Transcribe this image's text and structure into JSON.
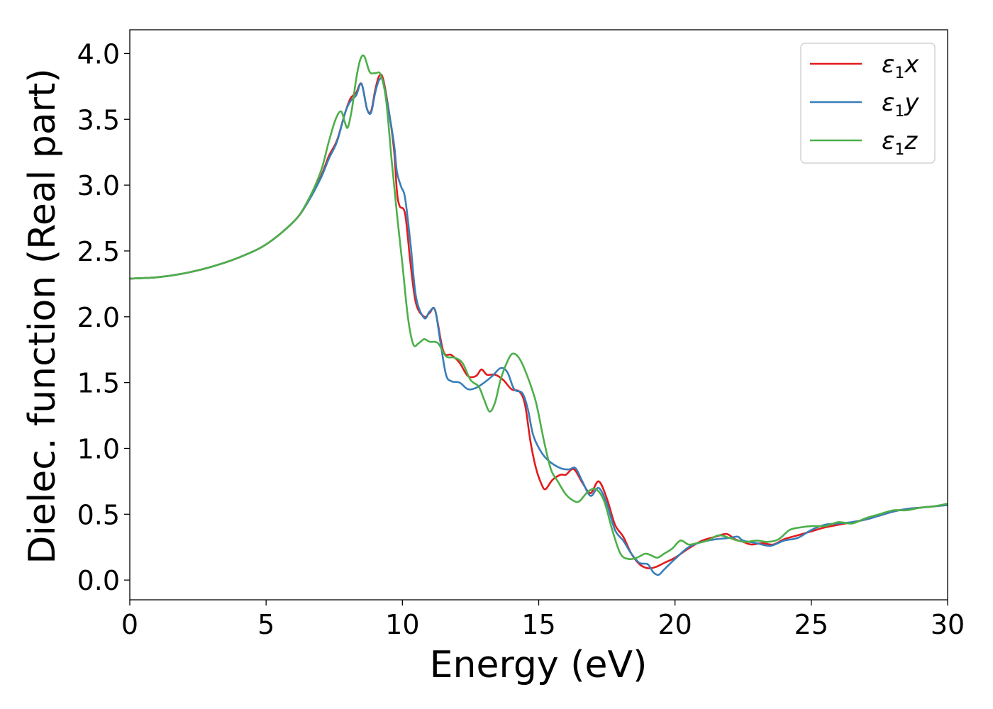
{
  "chart_data": {
    "type": "line",
    "xlabel": "Energy (eV)",
    "ylabel": "Dielec. function (Real part)",
    "xlim": [
      0,
      30
    ],
    "ylim": [
      -0.15,
      4.18
    ],
    "xticks": [
      0,
      5,
      10,
      15,
      20,
      25,
      30
    ],
    "xtick_labels": [
      "0",
      "5",
      "10",
      "15",
      "20",
      "25",
      "30"
    ],
    "yticks": [
      0.0,
      0.5,
      1.0,
      1.5,
      2.0,
      2.5,
      3.0,
      3.5,
      4.0
    ],
    "ytick_labels": [
      "0.0",
      "0.5",
      "1.0",
      "1.5",
      "2.0",
      "2.5",
      "3.0",
      "3.5",
      "4.0"
    ],
    "grid": false,
    "legend_position": "top-right",
    "series": [
      {
        "name": "ε1x",
        "symbol": "ε",
        "subscript": "1",
        "axis": "x",
        "color": "#e41a1c",
        "points": [
          [
            0,
            2.29
          ],
          [
            1,
            2.3
          ],
          [
            2,
            2.33
          ],
          [
            3,
            2.38
          ],
          [
            4,
            2.45
          ],
          [
            5,
            2.55
          ],
          [
            6,
            2.72
          ],
          [
            6.5,
            2.86
          ],
          [
            7,
            3.06
          ],
          [
            7.3,
            3.22
          ],
          [
            7.6,
            3.34
          ],
          [
            7.9,
            3.55
          ],
          [
            8.1,
            3.66
          ],
          [
            8.3,
            3.7
          ],
          [
            8.5,
            3.77
          ],
          [
            8.7,
            3.58
          ],
          [
            8.85,
            3.56
          ],
          [
            9.0,
            3.72
          ],
          [
            9.15,
            3.83
          ],
          [
            9.3,
            3.8
          ],
          [
            9.55,
            3.5
          ],
          [
            9.7,
            3.25
          ],
          [
            9.8,
            2.95
          ],
          [
            9.9,
            2.84
          ],
          [
            10.1,
            2.78
          ],
          [
            10.3,
            2.4
          ],
          [
            10.5,
            2.1
          ],
          [
            10.8,
            2.0
          ],
          [
            11.0,
            2.03
          ],
          [
            11.2,
            2.05
          ],
          [
            11.5,
            1.74
          ],
          [
            11.8,
            1.71
          ],
          [
            12.1,
            1.65
          ],
          [
            12.4,
            1.55
          ],
          [
            12.7,
            1.55
          ],
          [
            12.9,
            1.6
          ],
          [
            13.1,
            1.56
          ],
          [
            13.4,
            1.56
          ],
          [
            13.7,
            1.52
          ],
          [
            14.0,
            1.45
          ],
          [
            14.3,
            1.43
          ],
          [
            14.5,
            1.33
          ],
          [
            14.7,
            1.05
          ],
          [
            14.9,
            0.85
          ],
          [
            15.1,
            0.73
          ],
          [
            15.25,
            0.69
          ],
          [
            15.5,
            0.76
          ],
          [
            15.8,
            0.8
          ],
          [
            16.0,
            0.8
          ],
          [
            16.2,
            0.84
          ],
          [
            16.35,
            0.83
          ],
          [
            16.6,
            0.74
          ],
          [
            16.9,
            0.66
          ],
          [
            17.2,
            0.75
          ],
          [
            17.5,
            0.62
          ],
          [
            17.8,
            0.42
          ],
          [
            18.1,
            0.33
          ],
          [
            18.4,
            0.2
          ],
          [
            18.7,
            0.12
          ],
          [
            19.0,
            0.09
          ],
          [
            19.3,
            0.1
          ],
          [
            19.6,
            0.13
          ],
          [
            20.0,
            0.17
          ],
          [
            20.5,
            0.24
          ],
          [
            21.0,
            0.3
          ],
          [
            21.5,
            0.33
          ],
          [
            21.9,
            0.35
          ],
          [
            22.2,
            0.31
          ],
          [
            22.5,
            0.29
          ],
          [
            22.8,
            0.27
          ],
          [
            23.2,
            0.28
          ],
          [
            23.6,
            0.27
          ],
          [
            24.0,
            0.31
          ],
          [
            24.5,
            0.34
          ],
          [
            25.0,
            0.37
          ],
          [
            25.5,
            0.4
          ],
          [
            26.0,
            0.42
          ],
          [
            26.5,
            0.44
          ],
          [
            27.0,
            0.46
          ],
          [
            27.5,
            0.49
          ],
          [
            28.0,
            0.52
          ],
          [
            28.5,
            0.54
          ],
          [
            29.0,
            0.55
          ],
          [
            29.5,
            0.56
          ],
          [
            30.0,
            0.57
          ]
        ]
      },
      {
        "name": "ε1y",
        "symbol": "ε",
        "subscript": "1",
        "axis": "y",
        "color": "#377eb8",
        "points": [
          [
            0,
            2.29
          ],
          [
            1,
            2.3
          ],
          [
            2,
            2.33
          ],
          [
            3,
            2.38
          ],
          [
            4,
            2.45
          ],
          [
            5,
            2.55
          ],
          [
            6,
            2.72
          ],
          [
            6.5,
            2.86
          ],
          [
            7,
            3.05
          ],
          [
            7.3,
            3.2
          ],
          [
            7.6,
            3.33
          ],
          [
            7.9,
            3.55
          ],
          [
            8.1,
            3.64
          ],
          [
            8.3,
            3.68
          ],
          [
            8.5,
            3.77
          ],
          [
            8.7,
            3.58
          ],
          [
            8.85,
            3.55
          ],
          [
            9.0,
            3.7
          ],
          [
            9.15,
            3.8
          ],
          [
            9.3,
            3.78
          ],
          [
            9.55,
            3.5
          ],
          [
            9.7,
            3.3
          ],
          [
            9.8,
            3.1
          ],
          [
            9.95,
            2.99
          ],
          [
            10.1,
            2.9
          ],
          [
            10.3,
            2.55
          ],
          [
            10.5,
            2.15
          ],
          [
            10.8,
            1.99
          ],
          [
            11.0,
            2.04
          ],
          [
            11.2,
            2.05
          ],
          [
            11.4,
            1.8
          ],
          [
            11.6,
            1.56
          ],
          [
            11.8,
            1.51
          ],
          [
            12.1,
            1.5
          ],
          [
            12.4,
            1.45
          ],
          [
            12.7,
            1.46
          ],
          [
            13.0,
            1.5
          ],
          [
            13.3,
            1.55
          ],
          [
            13.6,
            1.61
          ],
          [
            13.85,
            1.58
          ],
          [
            14.1,
            1.45
          ],
          [
            14.4,
            1.42
          ],
          [
            14.6,
            1.3
          ],
          [
            14.8,
            1.1
          ],
          [
            15.1,
            0.97
          ],
          [
            15.4,
            0.9
          ],
          [
            15.8,
            0.85
          ],
          [
            16.1,
            0.84
          ],
          [
            16.35,
            0.85
          ],
          [
            16.6,
            0.75
          ],
          [
            16.9,
            0.64
          ],
          [
            17.2,
            0.7
          ],
          [
            17.5,
            0.58
          ],
          [
            17.8,
            0.38
          ],
          [
            18.1,
            0.3
          ],
          [
            18.4,
            0.2
          ],
          [
            18.7,
            0.13
          ],
          [
            19.0,
            0.12
          ],
          [
            19.2,
            0.06
          ],
          [
            19.4,
            0.04
          ],
          [
            19.6,
            0.08
          ],
          [
            20.0,
            0.16
          ],
          [
            20.5,
            0.25
          ],
          [
            21.0,
            0.29
          ],
          [
            21.5,
            0.31
          ],
          [
            22.0,
            0.32
          ],
          [
            22.3,
            0.33
          ],
          [
            22.5,
            0.3
          ],
          [
            23.0,
            0.28
          ],
          [
            23.5,
            0.26
          ],
          [
            24.0,
            0.3
          ],
          [
            24.5,
            0.32
          ],
          [
            25.0,
            0.38
          ],
          [
            25.5,
            0.42
          ],
          [
            26.0,
            0.43
          ],
          [
            26.5,
            0.44
          ],
          [
            27.0,
            0.46
          ],
          [
            27.5,
            0.49
          ],
          [
            28.0,
            0.52
          ],
          [
            28.5,
            0.54
          ],
          [
            29.0,
            0.55
          ],
          [
            29.5,
            0.56
          ],
          [
            30.0,
            0.57
          ]
        ]
      },
      {
        "name": "ε1z",
        "symbol": "ε",
        "subscript": "1",
        "axis": "z",
        "color": "#4daf4a",
        "points": [
          [
            0,
            2.29
          ],
          [
            1,
            2.3
          ],
          [
            2,
            2.33
          ],
          [
            3,
            2.38
          ],
          [
            4,
            2.45
          ],
          [
            5,
            2.55
          ],
          [
            6,
            2.72
          ],
          [
            6.5,
            2.87
          ],
          [
            7,
            3.1
          ],
          [
            7.3,
            3.33
          ],
          [
            7.55,
            3.5
          ],
          [
            7.75,
            3.56
          ],
          [
            7.9,
            3.47
          ],
          [
            8.0,
            3.44
          ],
          [
            8.15,
            3.58
          ],
          [
            8.3,
            3.8
          ],
          [
            8.45,
            3.95
          ],
          [
            8.6,
            3.98
          ],
          [
            8.8,
            3.86
          ],
          [
            9.0,
            3.85
          ],
          [
            9.2,
            3.84
          ],
          [
            9.4,
            3.65
          ],
          [
            9.6,
            3.2
          ],
          [
            9.8,
            2.78
          ],
          [
            10.0,
            2.4
          ],
          [
            10.2,
            2.0
          ],
          [
            10.4,
            1.79
          ],
          [
            10.6,
            1.8
          ],
          [
            10.8,
            1.83
          ],
          [
            11.0,
            1.81
          ],
          [
            11.3,
            1.8
          ],
          [
            11.6,
            1.7
          ],
          [
            11.9,
            1.69
          ],
          [
            12.2,
            1.65
          ],
          [
            12.5,
            1.52
          ],
          [
            12.8,
            1.47
          ],
          [
            13.0,
            1.37
          ],
          [
            13.2,
            1.28
          ],
          [
            13.4,
            1.35
          ],
          [
            13.6,
            1.52
          ],
          [
            13.85,
            1.66
          ],
          [
            14.05,
            1.72
          ],
          [
            14.3,
            1.68
          ],
          [
            14.6,
            1.54
          ],
          [
            14.9,
            1.35
          ],
          [
            15.2,
            1.05
          ],
          [
            15.45,
            0.84
          ],
          [
            15.7,
            0.75
          ],
          [
            16.0,
            0.65
          ],
          [
            16.3,
            0.6
          ],
          [
            16.5,
            0.6
          ],
          [
            16.8,
            0.67
          ],
          [
            17.1,
            0.69
          ],
          [
            17.4,
            0.6
          ],
          [
            17.7,
            0.38
          ],
          [
            18.0,
            0.2
          ],
          [
            18.3,
            0.16
          ],
          [
            18.6,
            0.17
          ],
          [
            18.9,
            0.2
          ],
          [
            19.1,
            0.19
          ],
          [
            19.35,
            0.17
          ],
          [
            19.6,
            0.2
          ],
          [
            19.9,
            0.24
          ],
          [
            20.2,
            0.3
          ],
          [
            20.5,
            0.27
          ],
          [
            20.8,
            0.28
          ],
          [
            21.2,
            0.3
          ],
          [
            21.6,
            0.34
          ],
          [
            22.0,
            0.32
          ],
          [
            22.3,
            0.3
          ],
          [
            22.6,
            0.29
          ],
          [
            23.0,
            0.3
          ],
          [
            23.4,
            0.29
          ],
          [
            23.8,
            0.31
          ],
          [
            24.2,
            0.38
          ],
          [
            24.6,
            0.4
          ],
          [
            25.0,
            0.41
          ],
          [
            25.5,
            0.41
          ],
          [
            26.0,
            0.44
          ],
          [
            26.5,
            0.43
          ],
          [
            27.0,
            0.47
          ],
          [
            27.5,
            0.5
          ],
          [
            28.0,
            0.53
          ],
          [
            28.5,
            0.53
          ],
          [
            29.0,
            0.55
          ],
          [
            29.5,
            0.56
          ],
          [
            30.0,
            0.58
          ]
        ]
      }
    ]
  }
}
